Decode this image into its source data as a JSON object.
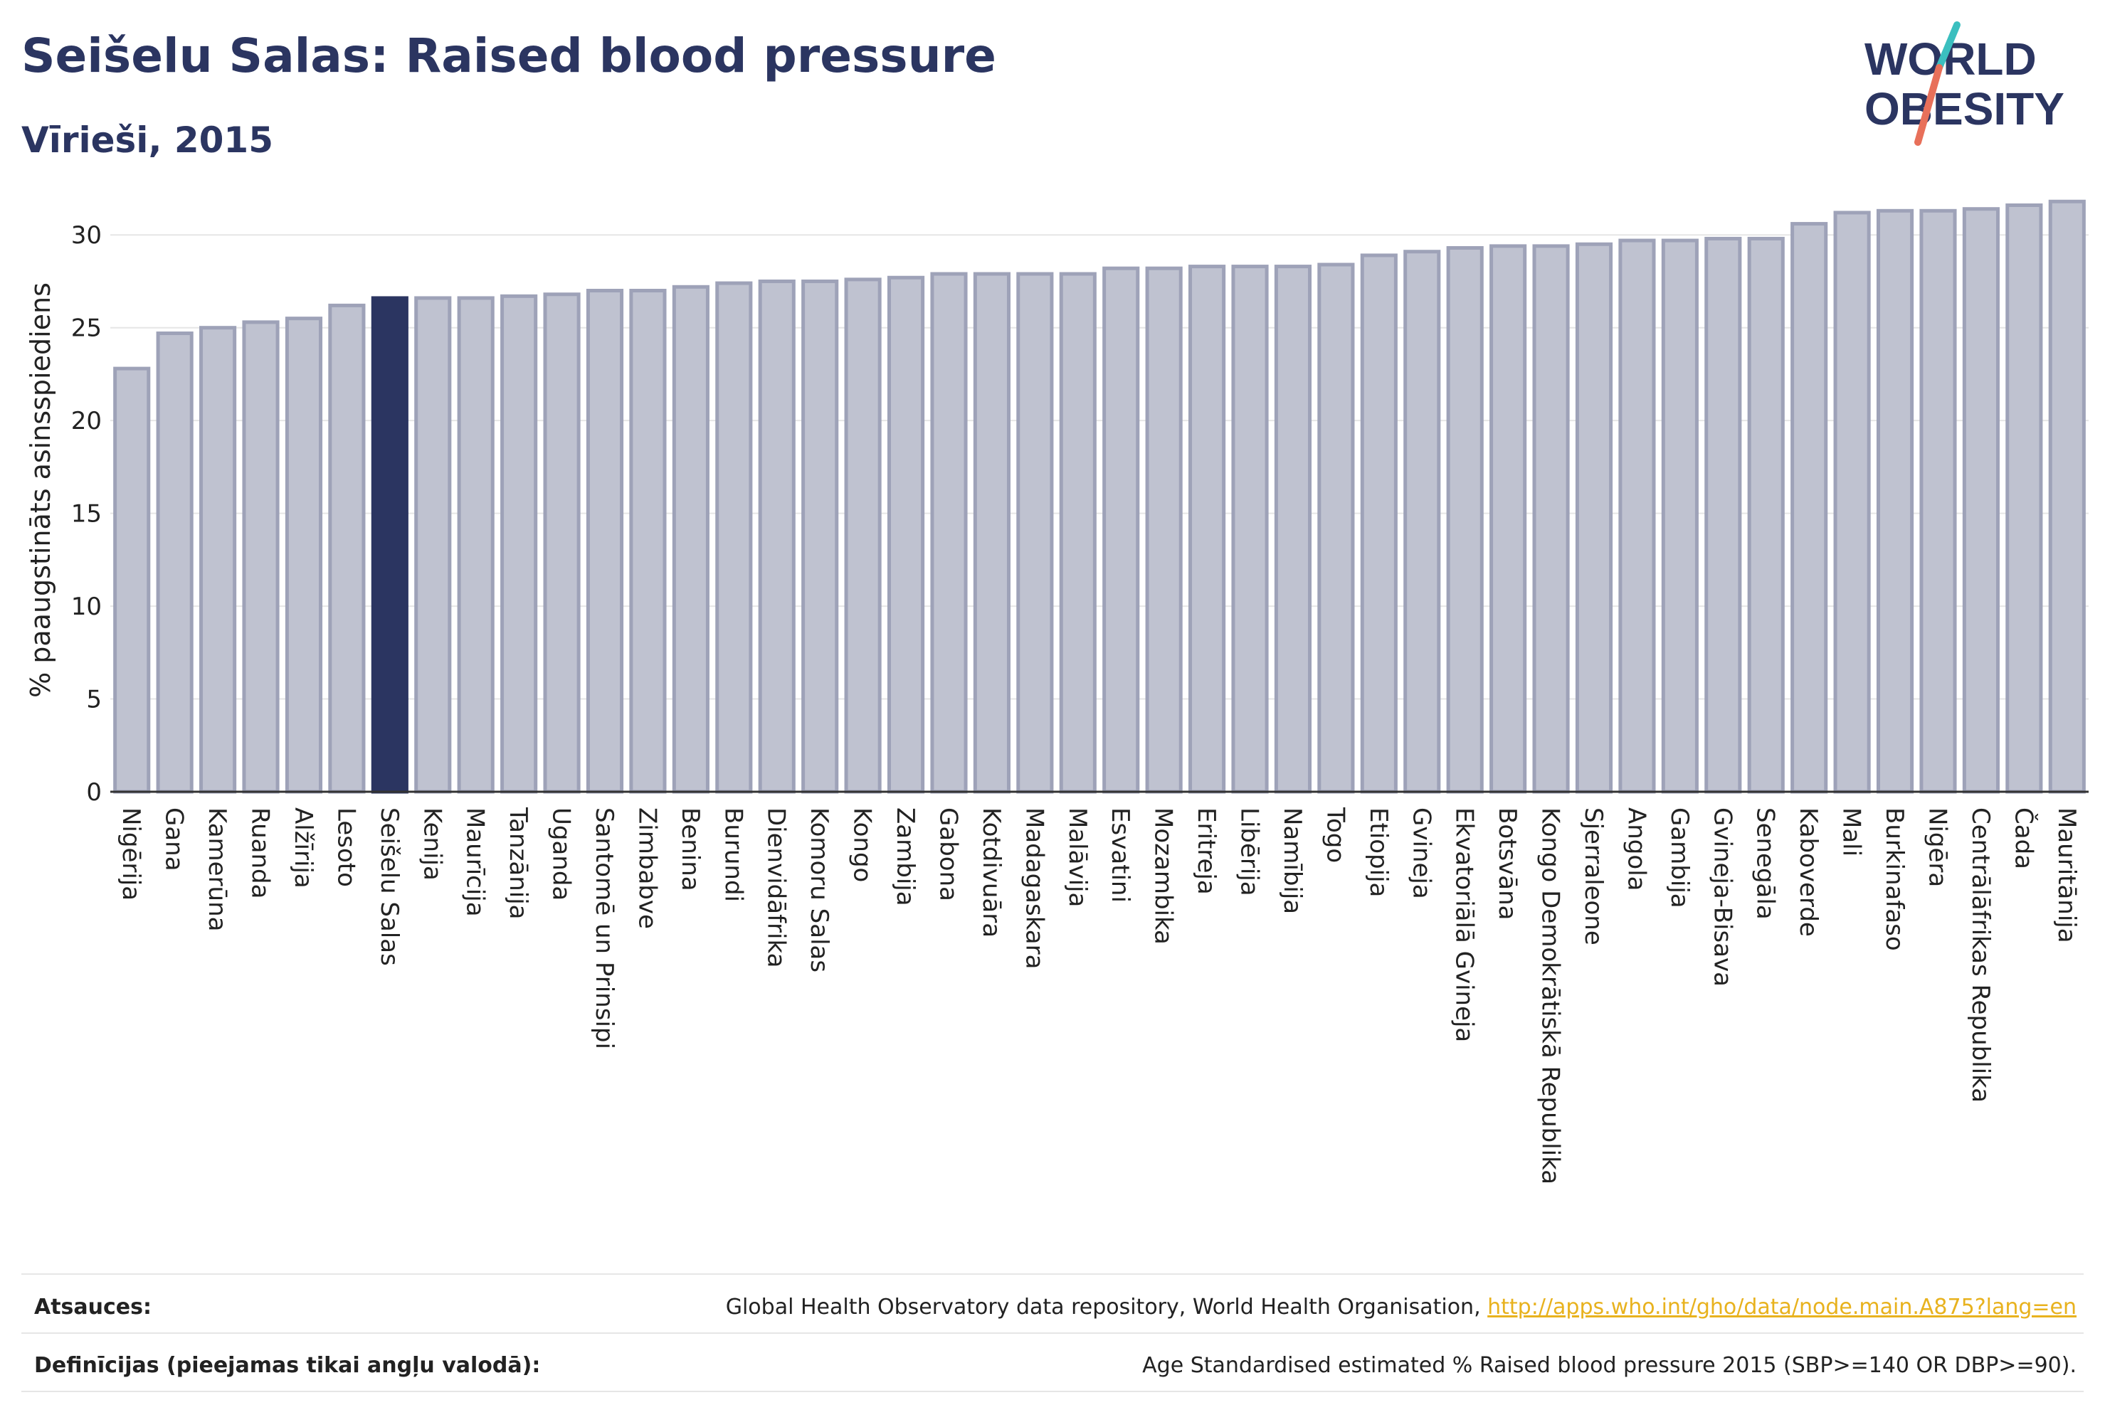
{
  "header": {
    "title": "Seišelu Salas: Raised blood pressure",
    "subtitle": "Vīrieši, 2015"
  },
  "logo": {
    "line1": "WORLD",
    "line2": "OBESITY",
    "colors": {
      "text": "#2b3561",
      "slash_teal": "#3bbfbf",
      "slash_coral": "#e8705a"
    }
  },
  "colors": {
    "bar_default": "#bfc2d0",
    "bar_default_stroke": "#9ea2b8",
    "bar_highlight": "#2b3561",
    "grid": "#e6e6e6",
    "axis": "#333333"
  },
  "chart_data": {
    "type": "bar",
    "ylabel": "% paaugstināts asinsspiediens",
    "ylim": [
      0,
      32.5
    ],
    "yticks": [
      0,
      5,
      10,
      15,
      20,
      25,
      30
    ],
    "grid": true,
    "highlight": "Seišelu Salas",
    "categories": [
      "Nigērija",
      "Gana",
      "Kamerūna",
      "Ruanda",
      "Alžīrija",
      "Lesoto",
      "Seišelu Salas",
      "Kenija",
      "Maurīcija",
      "Tanzānija",
      "Uganda",
      "Santomē un Prinsipi",
      "Zimbabve",
      "Benina",
      "Burundi",
      "Dienvidāfrika",
      "Komoru Salas",
      "Kongo",
      "Zambija",
      "Gabona",
      "Kotdivuāra",
      "Madagaskara",
      "Malāvija",
      "Esvatini",
      "Mozambika",
      "Eritreja",
      "Libērija",
      "Namībija",
      "Togo",
      "Etiopija",
      "Gvineja",
      "Ekvatoriālā Gvineja",
      "Botsvāna",
      "Kongo Demokrātiskā Republika",
      "Sjerraleone",
      "Angola",
      "Gambija",
      "Gvineja-Bisava",
      "Senegāla",
      "Kaboverde",
      "Mali",
      "Burkinafaso",
      "Nigēra",
      "Centrālāfrikas Republika",
      "Čada",
      "Mauritānija"
    ],
    "values": [
      22.8,
      24.7,
      25.0,
      25.3,
      25.5,
      26.2,
      26.6,
      26.6,
      26.6,
      26.7,
      26.8,
      27.0,
      27.0,
      27.2,
      27.4,
      27.5,
      27.5,
      27.6,
      27.7,
      27.9,
      27.9,
      27.9,
      27.9,
      28.2,
      28.2,
      28.3,
      28.3,
      28.3,
      28.4,
      28.9,
      29.1,
      29.3,
      29.4,
      29.4,
      29.5,
      29.7,
      29.7,
      29.8,
      29.8,
      30.6,
      31.2,
      31.3,
      31.3,
      31.4,
      31.6,
      31.8
    ]
  },
  "footer": {
    "sources_label": "Atsauces:",
    "sources_text": "Global Health Observatory data repository, World Health Organisation, ",
    "sources_link": "http://apps.who.int/gho/data/node.main.A875?lang=en",
    "definitions_label": "Definīcijas (pieejamas tikai angļu valodā):",
    "definitions_text": "Age Standardised estimated % Raised blood pressure 2015 (SBP>=140 OR DBP>=90)."
  }
}
